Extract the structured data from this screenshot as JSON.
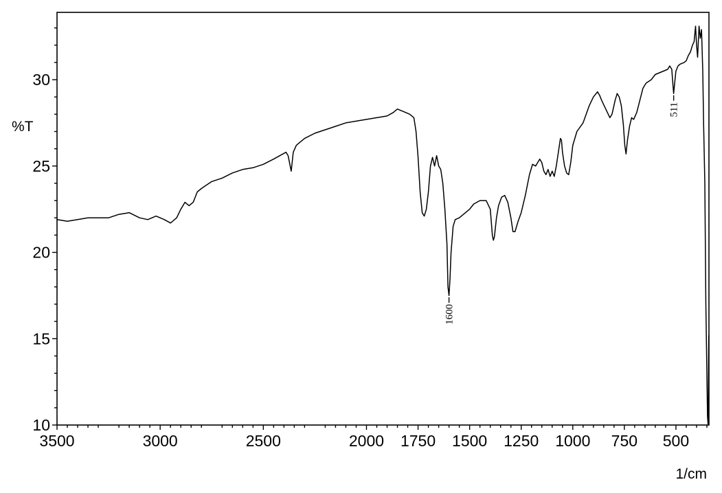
{
  "chart_data": {
    "type": "line",
    "title": "",
    "xlabel": "1/cm",
    "ylabel": "%T",
    "xlim": [
      3500,
      340
    ],
    "ylim": [
      10,
      33.9
    ],
    "x_ticks": [
      3500,
      3000,
      2500,
      2000,
      1750,
      1500,
      1250,
      1000,
      750,
      500
    ],
    "x_tick_labels": [
      "3500",
      "3000",
      "2500",
      "2000",
      "1750",
      "1500",
      "1250",
      "1000",
      "750",
      "500"
    ],
    "y_ticks": [
      10,
      15,
      20,
      25,
      30
    ],
    "y_tick_labels": [
      "10",
      "15",
      "20",
      "25",
      "30"
    ],
    "x_reversed": true,
    "grid": false,
    "series": [
      {
        "name": "",
        "color": "#000000",
        "points": [
          [
            3500,
            21.9
          ],
          [
            3450,
            21.8
          ],
          [
            3400,
            21.9
          ],
          [
            3350,
            22.0
          ],
          [
            3300,
            22.0
          ],
          [
            3250,
            22.0
          ],
          [
            3200,
            22.2
          ],
          [
            3150,
            22.3
          ],
          [
            3100,
            22.0
          ],
          [
            3060,
            21.9
          ],
          [
            3020,
            22.1
          ],
          [
            2980,
            21.9
          ],
          [
            2950,
            21.7
          ],
          [
            2920,
            22.0
          ],
          [
            2900,
            22.5
          ],
          [
            2880,
            22.9
          ],
          [
            2860,
            22.7
          ],
          [
            2840,
            22.9
          ],
          [
            2820,
            23.5
          ],
          [
            2800,
            23.7
          ],
          [
            2750,
            24.1
          ],
          [
            2700,
            24.3
          ],
          [
            2650,
            24.6
          ],
          [
            2600,
            24.8
          ],
          [
            2550,
            24.9
          ],
          [
            2500,
            25.1
          ],
          [
            2450,
            25.4
          ],
          [
            2420,
            25.6
          ],
          [
            2390,
            25.8
          ],
          [
            2380,
            25.6
          ],
          [
            2365,
            24.7
          ],
          [
            2355,
            25.8
          ],
          [
            2340,
            26.2
          ],
          [
            2300,
            26.6
          ],
          [
            2250,
            26.9
          ],
          [
            2200,
            27.1
          ],
          [
            2150,
            27.3
          ],
          [
            2100,
            27.5
          ],
          [
            2050,
            27.6
          ],
          [
            2000,
            27.7
          ],
          [
            1950,
            27.8
          ],
          [
            1900,
            27.9
          ],
          [
            1870,
            28.1
          ],
          [
            1850,
            28.3
          ],
          [
            1830,
            28.2
          ],
          [
            1810,
            28.1
          ],
          [
            1790,
            28.0
          ],
          [
            1770,
            27.8
          ],
          [
            1760,
            27.0
          ],
          [
            1750,
            25.5
          ],
          [
            1740,
            23.5
          ],
          [
            1730,
            22.3
          ],
          [
            1720,
            22.1
          ],
          [
            1710,
            22.5
          ],
          [
            1700,
            23.5
          ],
          [
            1690,
            25.0
          ],
          [
            1680,
            25.5
          ],
          [
            1670,
            25.0
          ],
          [
            1660,
            25.6
          ],
          [
            1650,
            25.0
          ],
          [
            1640,
            24.8
          ],
          [
            1630,
            24.0
          ],
          [
            1620,
            22.5
          ],
          [
            1610,
            20.5
          ],
          [
            1605,
            18.0
          ],
          [
            1600,
            17.5
          ],
          [
            1595,
            18.5
          ],
          [
            1590,
            20.0
          ],
          [
            1580,
            21.5
          ],
          [
            1570,
            21.9
          ],
          [
            1550,
            22.0
          ],
          [
            1520,
            22.3
          ],
          [
            1500,
            22.5
          ],
          [
            1480,
            22.8
          ],
          [
            1450,
            23.0
          ],
          [
            1420,
            23.0
          ],
          [
            1400,
            22.5
          ],
          [
            1390,
            21.0
          ],
          [
            1385,
            20.7
          ],
          [
            1380,
            20.9
          ],
          [
            1370,
            22.0
          ],
          [
            1360,
            22.7
          ],
          [
            1345,
            23.2
          ],
          [
            1330,
            23.3
          ],
          [
            1315,
            22.9
          ],
          [
            1300,
            22.0
          ],
          [
            1290,
            21.2
          ],
          [
            1280,
            21.2
          ],
          [
            1265,
            21.8
          ],
          [
            1250,
            22.3
          ],
          [
            1230,
            23.3
          ],
          [
            1210,
            24.5
          ],
          [
            1195,
            25.1
          ],
          [
            1180,
            25.0
          ],
          [
            1170,
            25.2
          ],
          [
            1160,
            25.4
          ],
          [
            1150,
            25.2
          ],
          [
            1140,
            24.7
          ],
          [
            1130,
            24.5
          ],
          [
            1120,
            24.8
          ],
          [
            1110,
            24.4
          ],
          [
            1100,
            24.7
          ],
          [
            1090,
            24.4
          ],
          [
            1080,
            25.0
          ],
          [
            1070,
            25.8
          ],
          [
            1060,
            26.6
          ],
          [
            1055,
            26.5
          ],
          [
            1050,
            25.8
          ],
          [
            1040,
            25.0
          ],
          [
            1030,
            24.6
          ],
          [
            1020,
            24.5
          ],
          [
            1010,
            25.2
          ],
          [
            1000,
            26.2
          ],
          [
            980,
            27.0
          ],
          [
            950,
            27.5
          ],
          [
            920,
            28.5
          ],
          [
            900,
            29.0
          ],
          [
            880,
            29.3
          ],
          [
            870,
            29.1
          ],
          [
            860,
            28.8
          ],
          [
            840,
            28.3
          ],
          [
            820,
            27.8
          ],
          [
            810,
            28.0
          ],
          [
            795,
            28.8
          ],
          [
            785,
            29.2
          ],
          [
            775,
            29.0
          ],
          [
            765,
            28.5
          ],
          [
            755,
            27.4
          ],
          [
            748,
            26.2
          ],
          [
            742,
            25.7
          ],
          [
            735,
            26.5
          ],
          [
            725,
            27.3
          ],
          [
            715,
            27.8
          ],
          [
            705,
            27.7
          ],
          [
            690,
            28.1
          ],
          [
            675,
            28.8
          ],
          [
            660,
            29.5
          ],
          [
            645,
            29.8
          ],
          [
            620,
            30.0
          ],
          [
            600,
            30.3
          ],
          [
            580,
            30.4
          ],
          [
            560,
            30.5
          ],
          [
            540,
            30.6
          ],
          [
            530,
            30.8
          ],
          [
            520,
            30.6
          ],
          [
            515,
            29.8
          ],
          [
            511,
            29.2
          ],
          [
            506,
            29.8
          ],
          [
            500,
            30.5
          ],
          [
            490,
            30.8
          ],
          [
            480,
            30.9
          ],
          [
            460,
            31.0
          ],
          [
            450,
            31.1
          ],
          [
            440,
            31.4
          ],
          [
            430,
            31.6
          ],
          [
            420,
            32.0
          ],
          [
            412,
            32.2
          ],
          [
            405,
            33.1
          ],
          [
            400,
            32.0
          ],
          [
            395,
            31.3
          ],
          [
            388,
            33.1
          ],
          [
            382,
            32.4
          ],
          [
            376,
            32.9
          ],
          [
            370,
            30.5
          ],
          [
            366,
            27.5
          ],
          [
            360,
            24.0
          ],
          [
            355,
            17.0
          ],
          [
            350,
            13.0
          ],
          [
            347,
            10.5
          ],
          [
            344,
            10.0
          ],
          [
            341,
            15.2
          ]
        ]
      }
    ],
    "annotations": [
      {
        "x": 1600,
        "y": 17.4,
        "text": "1600"
      },
      {
        "x": 511,
        "y": 29.1,
        "text": "511"
      }
    ]
  }
}
